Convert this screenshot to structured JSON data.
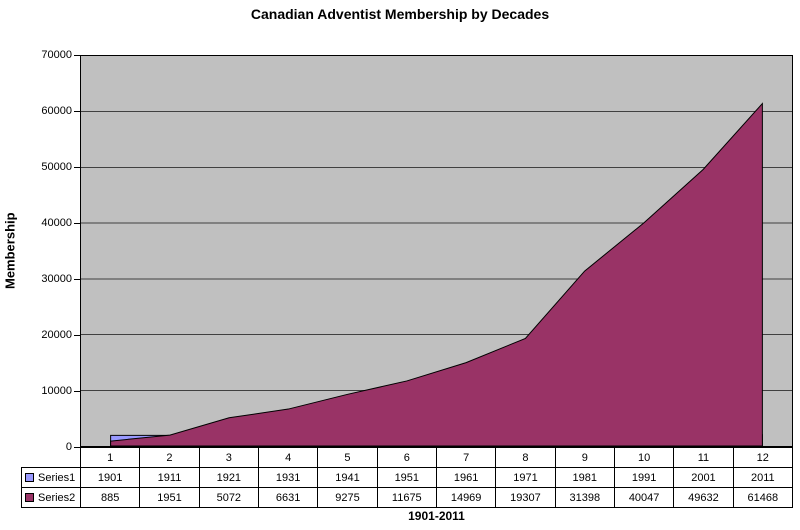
{
  "chart_data": {
    "type": "area",
    "title": "Canadian Adventist Membership by Decades",
    "x_axis": {
      "title": "1901-2011",
      "categories": [
        "1",
        "2",
        "3",
        "4",
        "5",
        "6",
        "7",
        "8",
        "9",
        "10",
        "11",
        "12"
      ]
    },
    "y_axis": {
      "title": "Membership",
      "min": 0,
      "max": 70000,
      "tick_step": 10000,
      "tick_labels": [
        "0",
        "10000",
        "20000",
        "30000",
        "40000",
        "50000",
        "60000",
        "70000"
      ]
    },
    "series": [
      {
        "name": "Series1",
        "color": "#9999FF",
        "border_color": "#000000",
        "values": [
          1901,
          1911,
          1921,
          1931,
          1941,
          1951,
          1961,
          1971,
          1981,
          1991,
          2001,
          2011
        ]
      },
      {
        "name": "Series2",
        "color": "#993366",
        "border_color": "#000000",
        "values": [
          885,
          1951,
          5072,
          6631,
          9275,
          11675,
          14969,
          19307,
          31398,
          40047,
          49632,
          61468
        ]
      }
    ],
    "plot": {
      "background": "#C0C0C0",
      "gridline_color": "#404040",
      "axis_color": "#000000",
      "gridlines": true
    },
    "legend": {
      "position": "data-table-left"
    }
  }
}
